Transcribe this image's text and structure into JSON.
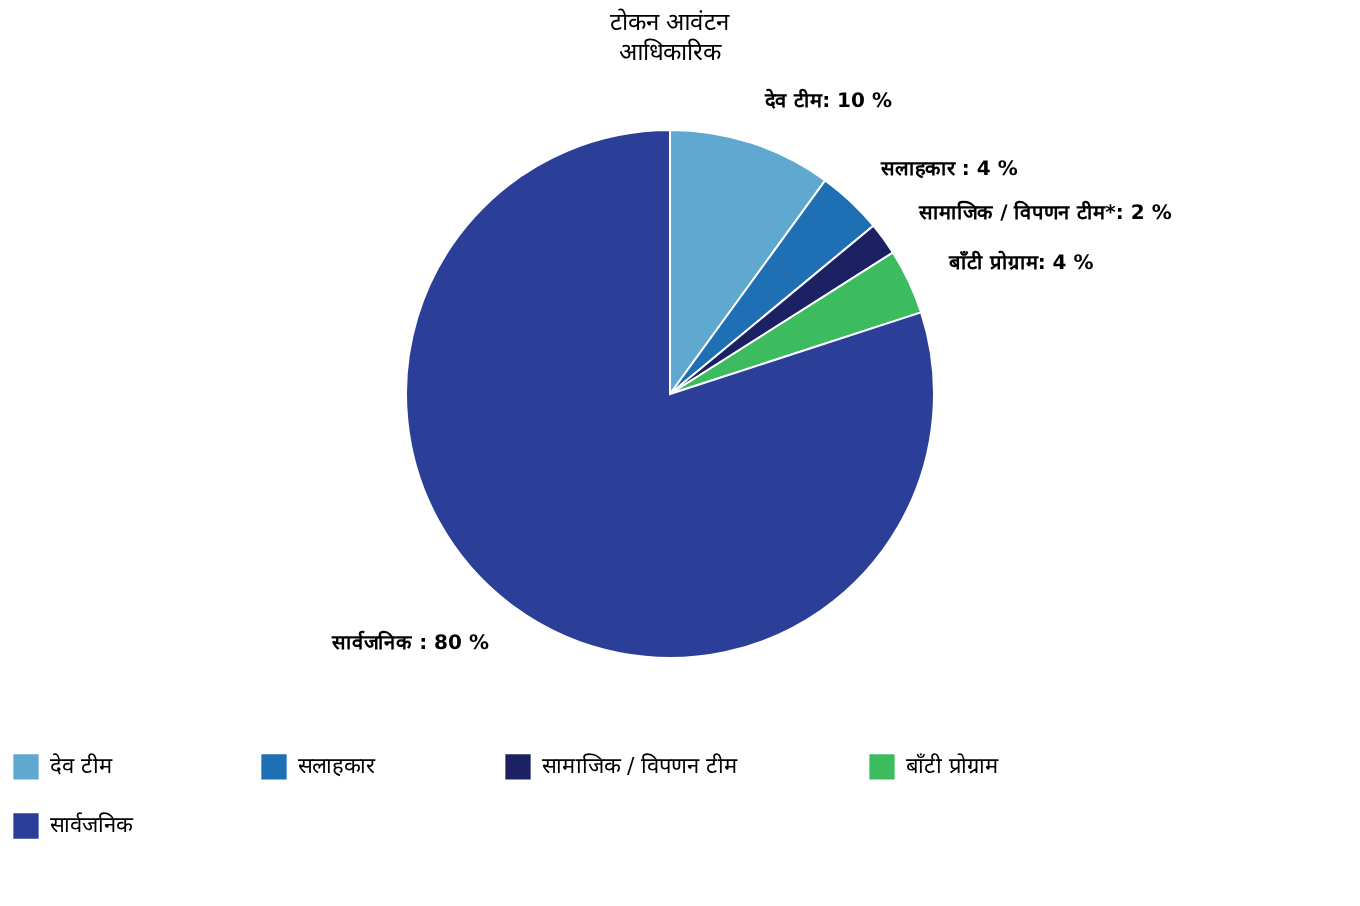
{
  "chart_data": {
    "type": "pie",
    "title": "टोकन आवंटन",
    "subtitle": "आधिकारिक",
    "categories": [
      "देव टीम",
      "सलाहकार",
      "सामाजिक / विपणन टीम",
      "बाँटी प्रोग्राम",
      "सार्वजनिक"
    ],
    "values": [
      10,
      4,
      2,
      4,
      80
    ],
    "colors": [
      "#5fa8cf",
      "#1f6fb5",
      "#1b2163",
      "#3dbb5f",
      "#2b3f98"
    ],
    "value_labels": [
      "देव टीम: 10 %",
      "सलाहकार : 4 %",
      "सामाजिक / विपणन टीम*: 2 %",
      "बाँटी प्रोग्राम: 4 %",
      "सार्वजनिक : 80 %"
    ],
    "legend": "bottom"
  }
}
